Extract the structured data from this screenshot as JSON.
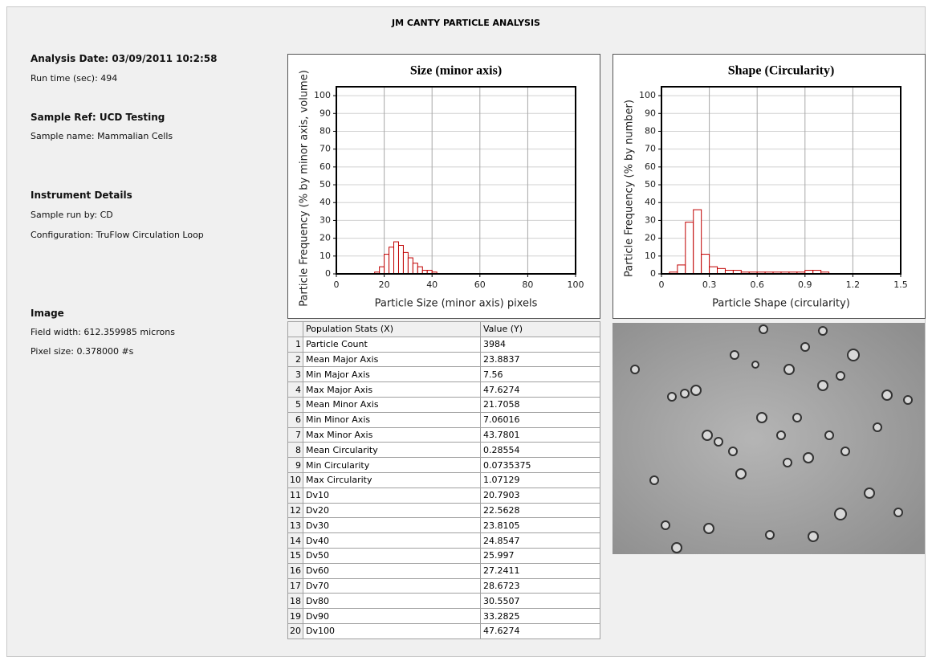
{
  "title": "JM CANTY PARTICLE ANALYSIS",
  "sidebar": [
    "Analysis Date: 03/09/2011 10:2:58",
    "Run time (sec): 494",
    "Sample Ref: UCD Testing",
    "Sample name: Mammalian Cells",
    "Instrument Details",
    "Sample run by: CD",
    "Configuration: TruFlow Circulation Loop",
    "Image",
    "Field width: 612.359985 microns",
    "Pixel size: 0.378000 #s"
  ],
  "chart_data": [
    {
      "type": "histogram",
      "title": "Size (minor axis)",
      "x_label": "Particle Size (minor axis) pixels",
      "y_label": "Particle Frequency (% by minor axis, volume)",
      "bins": [
        16,
        18,
        20,
        22,
        24,
        26,
        28,
        30,
        32,
        34,
        36,
        38,
        40,
        42,
        44
      ],
      "values": [
        1,
        4,
        11,
        15,
        18,
        16,
        12,
        9,
        6,
        4,
        2,
        2,
        1,
        0
      ],
      "color": "#c00000",
      "xlim": [
        0,
        100
      ],
      "xticks": [
        0,
        20,
        40,
        60,
        80,
        100
      ],
      "ylim": [
        0,
        105
      ],
      "yticks": [
        0,
        10,
        20,
        30,
        40,
        50,
        60,
        70,
        80,
        90,
        100
      ],
      "grid": true
    },
    {
      "type": "histogram",
      "title": "Shape (Circularity)",
      "x_label": "Particle Shape (circularity)",
      "y_label": "Particle Frequency (% by number)",
      "bins": [
        0.05,
        0.1,
        0.15,
        0.2,
        0.25,
        0.3,
        0.35,
        0.4,
        0.45,
        0.5,
        0.55,
        0.6,
        0.65,
        0.7,
        0.75,
        0.8,
        0.85,
        0.9,
        0.95,
        1.0,
        1.05
      ],
      "values": [
        1,
        5,
        29,
        36,
        11,
        4,
        3,
        2,
        2,
        1,
        1,
        1,
        1,
        1,
        1,
        1,
        1,
        2,
        2,
        1
      ],
      "color": "#c00000",
      "xlim": [
        0,
        1.5
      ],
      "xticks": [
        0,
        0.3,
        0.6,
        0.9,
        1.2,
        1.5
      ],
      "ylim": [
        0,
        105
      ],
      "yticks": [
        0,
        10,
        20,
        30,
        40,
        50,
        60,
        70,
        80,
        90,
        100
      ],
      "grid": true
    }
  ],
  "table": {
    "header": [
      "Population Stats (X)",
      "Value (Y)"
    ],
    "rows": [
      [
        "1",
        "Particle Count",
        "3984"
      ],
      [
        "2",
        "Mean Major Axis",
        "23.8837"
      ],
      [
        "3",
        "Min Major Axis",
        "7.56"
      ],
      [
        "4",
        "Max Major Axis",
        "47.6274"
      ],
      [
        "5",
        "Mean Minor Axis",
        "21.7058"
      ],
      [
        "6",
        "Min Minor Axis",
        "7.06016"
      ],
      [
        "7",
        "Max Minor Axis",
        "43.7801"
      ],
      [
        "8",
        "Mean Circularity",
        "0.28554"
      ],
      [
        "9",
        "Min Circularity",
        "0.0735375"
      ],
      [
        "10",
        "Max Circularity",
        "1.07129"
      ],
      [
        "11",
        "Dv10",
        "20.7903"
      ],
      [
        "12",
        "Dv20",
        "22.5628"
      ],
      [
        "13",
        "Dv30",
        "23.8105"
      ],
      [
        "14",
        "Dv40",
        "24.8547"
      ],
      [
        "15",
        "Dv50",
        "25.997"
      ],
      [
        "16",
        "Dv60",
        "27.2411"
      ],
      [
        "17",
        "Dv70",
        "28.6723"
      ],
      [
        "18",
        "Dv80",
        "30.5507"
      ],
      [
        "19",
        "Dv90",
        "33.2825"
      ],
      [
        "20",
        "Dv100",
        "47.6274"
      ]
    ]
  }
}
